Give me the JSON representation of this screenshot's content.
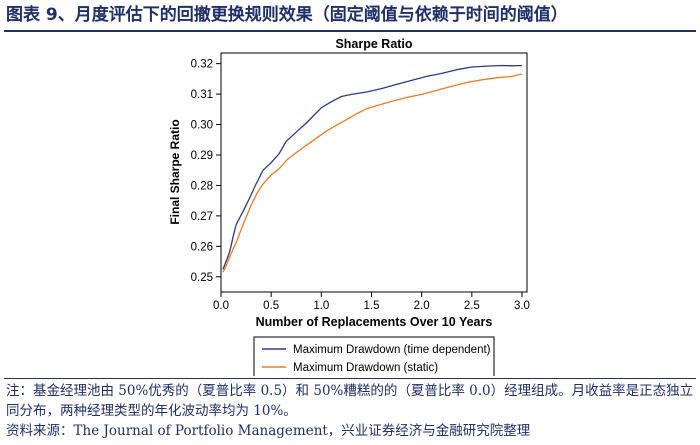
{
  "figure": {
    "title": "图表 9、月度评估下的回撤更换规则效果（固定阈值与依赖于时间的阈值）",
    "note": "注：基金经理池由 50%优秀的（夏普比率 0.5）和 50%糟糕的的（夏普比率 0.0）经理组成。月收益率是正态独立同分布，两种经理类型的年化波动率均为 10%。",
    "source": "资料来源：The Journal of Portfolio Management，兴业证券经济与金融研究院整理"
  },
  "chart_data": {
    "type": "line",
    "title": "Sharpe Ratio",
    "xlabel": "Number of Replacements Over 10 Years",
    "ylabel": "Final Sharpe Ratio",
    "xlim": [
      0,
      3.05
    ],
    "ylim": [
      0.245,
      0.3235
    ],
    "xticks": [
      "0.0",
      "0.5",
      "1.0",
      "1.5",
      "2.0",
      "2.5",
      "3.0"
    ],
    "xtick_values": [
      0,
      0.5,
      1.0,
      1.5,
      2.0,
      2.5,
      3.0
    ],
    "yticks": [
      "0.25",
      "0.26",
      "0.27",
      "0.28",
      "0.29",
      "0.30",
      "0.31",
      "0.32"
    ],
    "ytick_values": [
      0.25,
      0.26,
      0.27,
      0.28,
      0.29,
      0.3,
      0.31,
      0.32
    ],
    "grid": false,
    "legend_position": "bottom",
    "series": [
      {
        "name": "Maximum Drawdown (time dependent)",
        "color": "#2e3a87",
        "x": [
          0.02,
          0.05,
          0.08,
          0.1,
          0.12,
          0.15,
          0.18,
          0.22,
          0.28,
          0.35,
          0.42,
          0.5,
          0.58,
          0.65,
          0.75,
          0.85,
          1.0,
          1.1,
          1.2,
          1.3,
          1.45,
          1.6,
          1.75,
          1.9,
          2.05,
          2.2,
          2.35,
          2.5,
          2.65,
          2.8,
          2.9,
          3.0
        ],
        "y": [
          0.2525,
          0.255,
          0.2575,
          0.26,
          0.263,
          0.267,
          0.269,
          0.2715,
          0.2755,
          0.2805,
          0.285,
          0.2875,
          0.2905,
          0.2945,
          0.2975,
          0.3005,
          0.3055,
          0.3075,
          0.3092,
          0.3099,
          0.3107,
          0.3118,
          0.3132,
          0.3145,
          0.3158,
          0.3168,
          0.318,
          0.3189,
          0.3192,
          0.3194,
          0.3193,
          0.3194
        ]
      },
      {
        "name": "Maximum Drawdown (static)",
        "color": "#f07a1f",
        "x": [
          0.02,
          0.05,
          0.08,
          0.12,
          0.16,
          0.2,
          0.25,
          0.3,
          0.36,
          0.42,
          0.5,
          0.58,
          0.66,
          0.75,
          0.85,
          0.95,
          1.05,
          1.15,
          1.25,
          1.35,
          1.45,
          1.55,
          1.7,
          1.85,
          2.0,
          2.15,
          2.3,
          2.45,
          2.6,
          2.75,
          2.9,
          3.0
        ],
        "y": [
          0.2515,
          0.2535,
          0.256,
          0.259,
          0.262,
          0.2655,
          0.2695,
          0.2735,
          0.2775,
          0.2805,
          0.2835,
          0.2855,
          0.2885,
          0.2908,
          0.2932,
          0.2955,
          0.2978,
          0.2998,
          0.3016,
          0.3035,
          0.3052,
          0.3062,
          0.3076,
          0.3089,
          0.3099,
          0.3112,
          0.3126,
          0.3138,
          0.3147,
          0.3154,
          0.3158,
          0.3166
        ]
      }
    ]
  }
}
